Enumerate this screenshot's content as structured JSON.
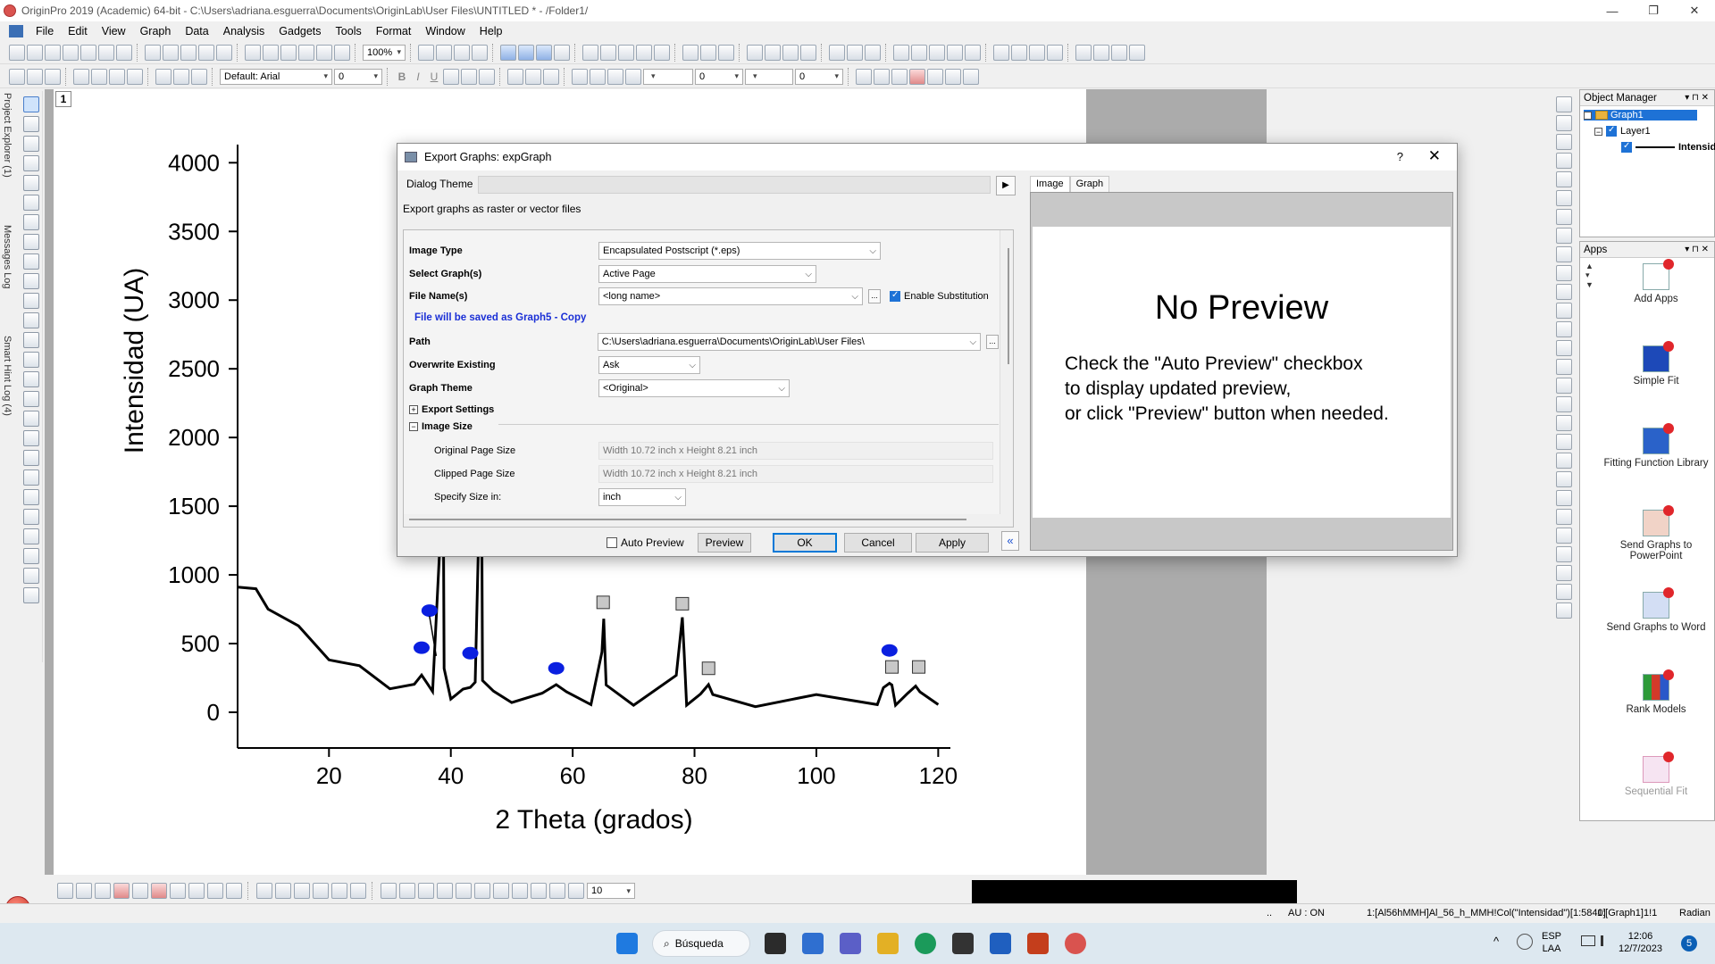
{
  "window": {
    "title": "OriginPro 2019 (Academic) 64-bit - C:\\Users\\adriana.esguerra\\Documents\\OriginLab\\User Files\\UNTITLED * - /Folder1/",
    "controls": [
      "—",
      "❐",
      "✕"
    ]
  },
  "menu": [
    "File",
    "Edit",
    "View",
    "Graph",
    "Data",
    "Analysis",
    "Gadgets",
    "Tools",
    "Format",
    "Window",
    "Help"
  ],
  "toolbar": {
    "zoom": "100%",
    "font": "Default: Arial",
    "font_size": "0",
    "line_width": "0",
    "line_style": "0",
    "bold": "B",
    "italic": "I",
    "underline": "U"
  },
  "side_tabs": [
    "Project Explorer (1)",
    "Messages Log",
    "Smart Hint Log (4)"
  ],
  "graph": {
    "layer_tab": "1",
    "xlabel": "2 Theta (grados)",
    "ylabel": "Intensidad (UA)"
  },
  "chart_data": {
    "type": "line",
    "xlabel": "2 Theta (grados)",
    "ylabel": "Intensidad (UA)",
    "xlim": [
      5,
      122
    ],
    "ylim": [
      -260,
      4080
    ],
    "x_ticks": [
      20,
      40,
      60,
      80,
      100,
      120
    ],
    "y_ticks": [
      0,
      500,
      1000,
      1500,
      2000,
      2500,
      3000,
      3500,
      4000
    ],
    "grid": false,
    "legend": "none",
    "series": [
      {
        "color": "#000000",
        "x": [
          5,
          8,
          10,
          15,
          20,
          25,
          30,
          34,
          35.2,
          36,
          37,
          38.2,
          38.5,
          38.9,
          40,
          42,
          43.2,
          44,
          44.5,
          44.8,
          45.2,
          47,
          50,
          55,
          57.3,
          59,
          63,
          64.8,
          65.1,
          65.5,
          70,
          77,
          78,
          78.3,
          78.7,
          81,
          82.3,
          83,
          90,
          100,
          110,
          111,
          112,
          112.4,
          113,
          115,
          116.3,
          117,
          120
        ],
        "y": [
          950,
          860,
          790,
          590,
          420,
          300,
          210,
          165,
          310,
          180,
          190,
          1170,
          4000,
          280,
          135,
          130,
          220,
          180,
          1200,
          4000,
          270,
          115,
          110,
          100,
          240,
          110,
          95,
          400,
          720,
          160,
          90,
          230,
          730,
          400,
          90,
          95,
          240,
          90,
          80,
          90,
          95,
          140,
          250,
          160,
          90,
          100,
          230,
          110,
          95
        ]
      }
    ],
    "markers": {
      "circles_x": [
        35.2,
        36.5,
        43.2,
        57.3,
        112
      ],
      "circles_y": [
        470,
        740,
        430,
        320,
        450
      ],
      "squares_x": [
        65,
        78,
        82.3,
        112.4,
        116.8
      ],
      "squares_y": [
        800,
        790,
        320,
        330,
        330
      ]
    }
  },
  "dialog": {
    "title": "Export Graphs: expGraph",
    "help": "?",
    "close": "✕",
    "theme_label": "Dialog Theme",
    "theme_arrow": "▶",
    "description": "Export graphs as raster or vector files",
    "image_type_label": "Image Type",
    "image_type_value": "Encapsulated Postscript (*.eps)",
    "select_label": "Select Graph(s)",
    "select_value": "Active Page",
    "filename_label": "File Name(s)",
    "filename_value": "<long name>",
    "more": "...",
    "enable_sub": "Enable Substitution",
    "save_note": "File will be saved as Graph5 - Copy",
    "path_label": "Path",
    "path_value": "C:\\Users\\adriana.esguerra\\Documents\\OriginLab\\User Files\\",
    "overwrite_label": "Overwrite Existing",
    "overwrite_value": "Ask",
    "graphtheme_label": "Graph Theme",
    "graphtheme_value": "<Original>",
    "export_settings": "Export Settings",
    "image_size": "Image Size",
    "expand_plus": "+",
    "expand_minus": "−",
    "orig_size_label": "Original Page Size",
    "orig_size_value": "Width 10.72 inch x Height 8.21 inch",
    "clip_size_label": "Clipped Page Size",
    "clip_size_value": "Width 10.72 inch x Height 8.21 inch",
    "specify_label": "Specify Size in:",
    "specify_value": "inch",
    "auto_preview": "Auto Preview",
    "buttons": {
      "preview": "Preview",
      "ok": "OK",
      "cancel": "Cancel",
      "apply": "Apply"
    },
    "collapse": "«",
    "tabs": [
      "Image",
      "Graph"
    ],
    "no_preview_title": "No Preview",
    "no_preview_lines": [
      "Check the \"Auto Preview\" checkbox",
      "to display updated preview,",
      "or click \"Preview\" button when needed."
    ]
  },
  "object_manager": {
    "title": "Object Manager",
    "ctl": "▾ ⊓ ✕",
    "tree": [
      "Graph1",
      "Layer1",
      "Intensidad"
    ],
    "expand_minus": "−"
  },
  "apps": {
    "title": "Apps",
    "ctl": "▾ ⊓ ✕",
    "scroll": "▲ ▾ ▼",
    "items": [
      "Add Apps",
      "Simple Fit",
      "Fitting Function Library",
      "Send Graphs to PowerPoint",
      "Send Graphs to Word",
      "Rank Models",
      "Sequential Fit"
    ]
  },
  "bottom_toolbar": {
    "value": "10"
  },
  "status": {
    "dots": "..",
    "au": "AU : ON",
    "col": "1:[Al56hMMH]Al_56_h_MMH!Col(\"Intensidad\")[1:5840]",
    "graph": "1:[Graph1]1!1",
    "radian": "Radian"
  },
  "taskbar": {
    "search": "Búsqueda",
    "lang": "ESP",
    "lang2": "LAA",
    "time": "12:06",
    "date": "12/7/2023",
    "notif": "5",
    "chevron": "^",
    "icon_colors": [
      "#1f7ae0",
      "#2b2b2b",
      "#2f6fd0",
      "#5b5fc7",
      "#e3b025",
      "#1b9a5a",
      "#333333",
      "#1f5fbf",
      "#c43e1c",
      "#d9534f"
    ]
  },
  "colors": {
    "accent": "#0078d7",
    "selection": "#1e72d6",
    "note": "#1a2fd6",
    "marker_circle": "#0a1fe0",
    "marker_square": "#c8c8c8"
  }
}
